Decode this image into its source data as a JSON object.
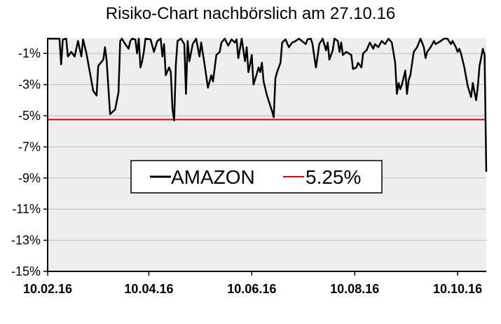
{
  "chart_data": {
    "type": "line",
    "title": "Risiko-Chart  nachbörslich am 27.10.16",
    "xlabel": "",
    "ylabel": "",
    "x_range": [
      "2016-02-10",
      "2016-10-27"
    ],
    "ylim": [
      -15,
      0
    ],
    "y_ticks": [
      -1,
      -3,
      -5,
      -7,
      -9,
      -11,
      -13,
      -15
    ],
    "y_tick_labels": [
      "-1%",
      "-3%",
      "-5%",
      "-7%",
      "-9%",
      "-11%",
      "-13%",
      "-15%"
    ],
    "x_ticks": [
      "2016-02-10",
      "2016-04-10",
      "2016-06-10",
      "2016-08-10",
      "2016-10-10"
    ],
    "x_tick_labels": [
      "10.02.16",
      "10.04.16",
      "10.06.16",
      "10.08.16",
      "10.10.16"
    ],
    "grid": "horizontal",
    "legend_position": "center",
    "series": [
      {
        "name": "AMAZON",
        "color": "#000000",
        "points": [
          [
            "2016-02-10",
            0.0
          ],
          [
            "2016-02-14",
            0.0
          ],
          [
            "2016-02-17",
            0.0
          ],
          [
            "2016-02-18",
            -1.7
          ],
          [
            "2016-02-19",
            -0.1
          ],
          [
            "2016-02-21",
            0.0
          ],
          [
            "2016-02-22",
            -1.2
          ],
          [
            "2016-02-24",
            -0.9
          ],
          [
            "2016-02-26",
            -1.2
          ],
          [
            "2016-02-28",
            -0.2
          ],
          [
            "2016-03-01",
            -1.2
          ],
          [
            "2016-03-02",
            -0.1
          ],
          [
            "2016-03-04",
            -1.0
          ],
          [
            "2016-03-08",
            -3.4
          ],
          [
            "2016-03-10",
            -3.7
          ],
          [
            "2016-03-11",
            -1.8
          ],
          [
            "2016-03-14",
            -1.4
          ],
          [
            "2016-03-15",
            -0.6
          ],
          [
            "2016-03-16",
            -1.5
          ],
          [
            "2016-03-18",
            -4.9
          ],
          [
            "2016-03-21",
            -4.6
          ],
          [
            "2016-03-23",
            -3.5
          ],
          [
            "2016-03-24",
            -0.2
          ],
          [
            "2016-03-25",
            0.0
          ],
          [
            "2016-03-27",
            -0.4
          ],
          [
            "2016-03-29",
            -0.7
          ],
          [
            "2016-03-30",
            -0.2
          ],
          [
            "2016-03-31",
            0.0
          ],
          [
            "2016-04-02",
            -0.1
          ],
          [
            "2016-04-03",
            -1.0
          ],
          [
            "2016-04-04",
            0.0
          ],
          [
            "2016-04-05",
            -1.9
          ],
          [
            "2016-04-06",
            -1.5
          ],
          [
            "2016-04-07",
            -0.9
          ],
          [
            "2016-04-08",
            0.0
          ],
          [
            "2016-04-11",
            -0.1
          ],
          [
            "2016-04-13",
            -0.9
          ],
          [
            "2016-04-15",
            -0.2
          ],
          [
            "2016-04-17",
            0.0
          ],
          [
            "2016-04-18",
            -1.2
          ],
          [
            "2016-04-19",
            -0.4
          ],
          [
            "2016-04-20",
            -2.4
          ],
          [
            "2016-04-22",
            -1.9
          ],
          [
            "2016-04-23",
            -2.2
          ],
          [
            "2016-04-24",
            -4.6
          ],
          [
            "2016-04-25",
            -5.3
          ],
          [
            "2016-04-26",
            -1.7
          ],
          [
            "2016-04-27",
            -0.2
          ],
          [
            "2016-04-29",
            0.0
          ],
          [
            "2016-05-01",
            -0.4
          ],
          [
            "2016-05-02",
            -3.6
          ],
          [
            "2016-05-03",
            -0.2
          ],
          [
            "2016-05-04",
            -1.5
          ],
          [
            "2016-05-06",
            -0.4
          ],
          [
            "2016-05-08",
            0.0
          ],
          [
            "2016-05-10",
            -1.2
          ],
          [
            "2016-05-11",
            -0.3
          ],
          [
            "2016-05-13",
            -1.7
          ],
          [
            "2016-05-15",
            -3.2
          ],
          [
            "2016-05-17",
            -2.4
          ],
          [
            "2016-05-18",
            -2.8
          ],
          [
            "2016-05-20",
            -1.1
          ],
          [
            "2016-05-22",
            -0.9
          ],
          [
            "2016-05-23",
            -0.3
          ],
          [
            "2016-05-25",
            0.0
          ],
          [
            "2016-05-27",
            -0.5
          ],
          [
            "2016-05-29",
            -0.1
          ],
          [
            "2016-05-31",
            -0.3
          ],
          [
            "2016-06-01",
            -0.1
          ],
          [
            "2016-06-02",
            -1.3
          ],
          [
            "2016-06-03",
            -0.7
          ],
          [
            "2016-06-04",
            0.0
          ],
          [
            "2016-06-06",
            -1.5
          ],
          [
            "2016-06-07",
            -0.6
          ],
          [
            "2016-06-08",
            -2.2
          ],
          [
            "2016-06-09",
            -1.7
          ],
          [
            "2016-06-10",
            -1.1
          ],
          [
            "2016-06-11",
            -3.0
          ],
          [
            "2016-06-13",
            -2.3
          ],
          [
            "2016-06-14",
            -1.9
          ],
          [
            "2016-06-15",
            -2.2
          ],
          [
            "2016-06-16",
            -1.6
          ],
          [
            "2016-06-17",
            -2.8
          ],
          [
            "2016-06-19",
            -3.7
          ],
          [
            "2016-06-22",
            -4.7
          ],
          [
            "2016-06-23",
            -5.1
          ],
          [
            "2016-06-24",
            -2.6
          ],
          [
            "2016-06-25",
            -2.2
          ],
          [
            "2016-06-27",
            -1.6
          ],
          [
            "2016-06-28",
            -0.3
          ],
          [
            "2016-06-30",
            -0.1
          ],
          [
            "2016-07-02",
            -0.6
          ],
          [
            "2016-07-04",
            -0.3
          ],
          [
            "2016-07-06",
            -0.2
          ],
          [
            "2016-07-08",
            0.0
          ],
          [
            "2016-07-12",
            -0.4
          ],
          [
            "2016-07-13",
            -0.1
          ],
          [
            "2016-07-15",
            0.0
          ],
          [
            "2016-07-16",
            -0.4
          ],
          [
            "2016-07-18",
            -1.9
          ],
          [
            "2016-07-19",
            -1.2
          ],
          [
            "2016-07-20",
            -0.4
          ],
          [
            "2016-07-22",
            0.0
          ],
          [
            "2016-07-24",
            -0.8
          ],
          [
            "2016-07-25",
            -0.3
          ],
          [
            "2016-07-26",
            -1.4
          ],
          [
            "2016-07-28",
            -0.8
          ],
          [
            "2016-07-29",
            0.0
          ],
          [
            "2016-07-31",
            -0.2
          ],
          [
            "2016-08-01",
            -0.9
          ],
          [
            "2016-08-02",
            -0.3
          ],
          [
            "2016-08-03",
            -1.1
          ],
          [
            "2016-08-05",
            -0.9
          ],
          [
            "2016-08-08",
            -1.1
          ],
          [
            "2016-08-09",
            -2.0
          ],
          [
            "2016-08-11",
            -1.9
          ],
          [
            "2016-08-12",
            -1.6
          ],
          [
            "2016-08-14",
            -1.9
          ],
          [
            "2016-08-15",
            -1.0
          ],
          [
            "2016-08-17",
            -0.8
          ],
          [
            "2016-08-19",
            -0.3
          ],
          [
            "2016-08-21",
            -0.7
          ],
          [
            "2016-08-22",
            -0.4
          ],
          [
            "2016-08-24",
            -0.6
          ],
          [
            "2016-08-26",
            -0.2
          ],
          [
            "2016-08-28",
            -0.4
          ],
          [
            "2016-08-30",
            0.0
          ],
          [
            "2016-09-01",
            -0.3
          ],
          [
            "2016-09-03",
            -1.6
          ],
          [
            "2016-09-04",
            -3.6
          ],
          [
            "2016-09-05",
            -2.9
          ],
          [
            "2016-09-06",
            -3.3
          ],
          [
            "2016-09-07",
            -3.0
          ],
          [
            "2016-09-09",
            -2.1
          ],
          [
            "2016-09-10",
            -3.6
          ],
          [
            "2016-09-11",
            -2.7
          ],
          [
            "2016-09-12",
            -2.4
          ],
          [
            "2016-09-14",
            -0.9
          ],
          [
            "2016-09-16",
            -0.6
          ],
          [
            "2016-09-18",
            0.0
          ],
          [
            "2016-09-20",
            -0.6
          ],
          [
            "2016-09-21",
            -1.3
          ],
          [
            "2016-09-22",
            -0.9
          ],
          [
            "2016-09-24",
            -0.6
          ],
          [
            "2016-09-26",
            -0.2
          ],
          [
            "2016-09-27",
            -0.4
          ],
          [
            "2016-09-30",
            -0.2
          ],
          [
            "2016-10-02",
            0.0
          ],
          [
            "2016-10-04",
            0.0
          ],
          [
            "2016-10-06",
            -0.4
          ],
          [
            "2016-10-07",
            -0.2
          ],
          [
            "2016-10-09",
            -0.6
          ],
          [
            "2016-10-10",
            -0.9
          ],
          [
            "2016-10-11",
            -0.7
          ],
          [
            "2016-10-12",
            -1.0
          ],
          [
            "2016-10-14",
            -1.9
          ],
          [
            "2016-10-16",
            -3.1
          ],
          [
            "2016-10-18",
            -3.8
          ],
          [
            "2016-10-19",
            -2.9
          ],
          [
            "2016-10-20",
            -3.5
          ],
          [
            "2016-10-21",
            -4.0
          ],
          [
            "2016-10-22",
            -3.1
          ],
          [
            "2016-10-23",
            -1.8
          ],
          [
            "2016-10-25",
            -0.7
          ],
          [
            "2016-10-26",
            -1.1
          ],
          [
            "2016-10-27",
            -8.6
          ]
        ]
      },
      {
        "name": "5.25%",
        "color": "#d40000",
        "points": [
          [
            "2016-02-10",
            -5.25
          ],
          [
            "2016-10-27",
            -5.25
          ]
        ]
      }
    ]
  }
}
